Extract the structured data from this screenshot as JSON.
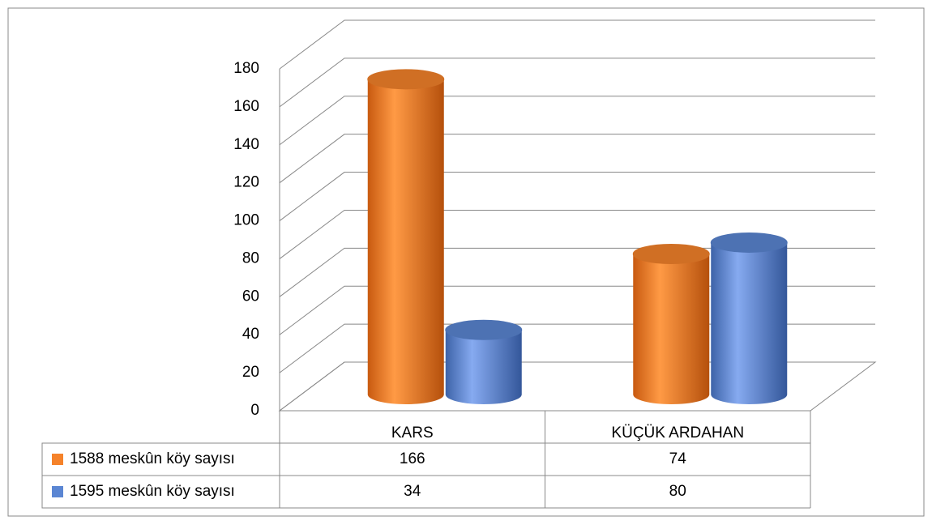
{
  "chart_data": {
    "type": "bar3d",
    "categories": [
      "KARS",
      "KÜÇÜK ARDAHAN"
    ],
    "series": [
      {
        "name": "1588 meskûn köy sayısı",
        "color": "#f5822a",
        "values": [
          166,
          74
        ]
      },
      {
        "name": "1595 meskûn köy sayısı",
        "color": "#5b86d3",
        "values": [
          34,
          80
        ]
      }
    ],
    "ylim": [
      0,
      180
    ],
    "yticks": [
      0,
      20,
      40,
      60,
      80,
      100,
      120,
      140,
      160,
      180
    ],
    "grid": true
  }
}
